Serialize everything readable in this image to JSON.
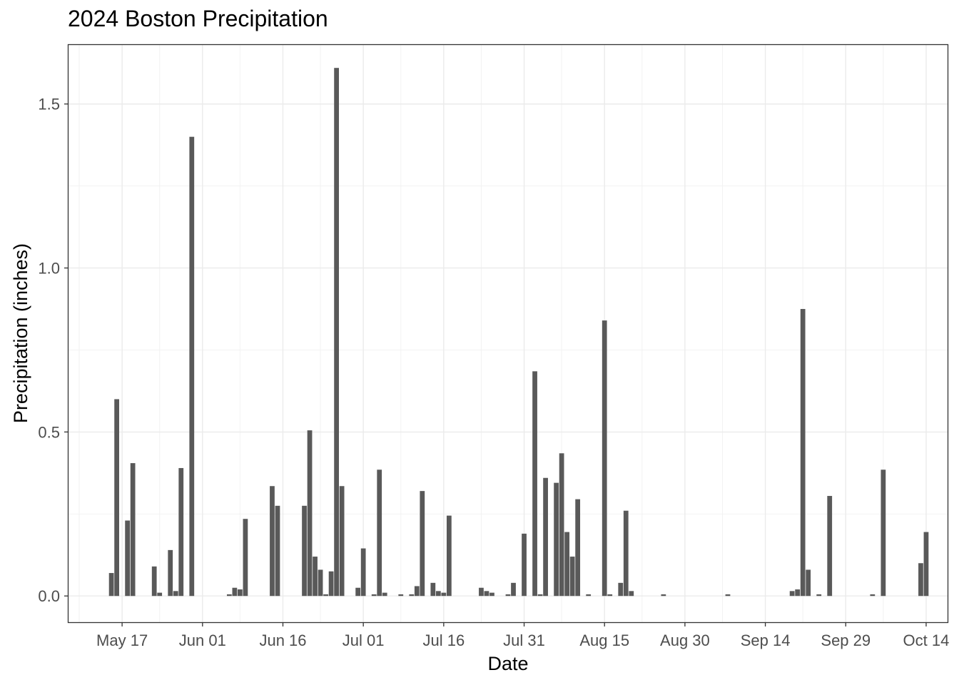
{
  "chart_data": {
    "type": "bar",
    "title": "2024 Boston Precipitation",
    "xlabel": "Date",
    "ylabel": "Precipitation (inches)",
    "year": 2024,
    "xlim": [
      "2024-05-07",
      "2024-10-18"
    ],
    "ylim": [
      -0.08,
      1.68
    ],
    "grid": true,
    "legend": "none",
    "bar_color": "#595959",
    "y_ticks": [
      {
        "value": 0.0,
        "label": "0.0"
      },
      {
        "value": 0.5,
        "label": "0.5"
      },
      {
        "value": 1.0,
        "label": "1.0"
      },
      {
        "value": 1.5,
        "label": "1.5"
      }
    ],
    "x_ticks": [
      {
        "date": "2024-05-17",
        "label": "May 17"
      },
      {
        "date": "2024-06-01",
        "label": "Jun 01"
      },
      {
        "date": "2024-06-16",
        "label": "Jun 16"
      },
      {
        "date": "2024-07-01",
        "label": "Jul 01"
      },
      {
        "date": "2024-07-16",
        "label": "Jul 16"
      },
      {
        "date": "2024-07-31",
        "label": "Jul 31"
      },
      {
        "date": "2024-08-15",
        "label": "Aug 15"
      },
      {
        "date": "2024-08-30",
        "label": "Aug 30"
      },
      {
        "date": "2024-09-14",
        "label": "Sep 14"
      },
      {
        "date": "2024-09-29",
        "label": "Sep 29"
      },
      {
        "date": "2024-10-14",
        "label": "Oct 14"
      }
    ],
    "x_minor_ticks": [
      "2024-05-09",
      "2024-05-24",
      "2024-06-08",
      "2024-06-23",
      "2024-07-08",
      "2024-07-23",
      "2024-08-07",
      "2024-08-22",
      "2024-09-06",
      "2024-09-21",
      "2024-10-06"
    ],
    "dates": [
      "2024-05-15",
      "2024-05-16",
      "2024-05-18",
      "2024-05-19",
      "2024-05-23",
      "2024-05-24",
      "2024-05-26",
      "2024-05-27",
      "2024-05-28",
      "2024-05-30",
      "2024-06-06",
      "2024-06-07",
      "2024-06-08",
      "2024-06-09",
      "2024-06-14",
      "2024-06-15",
      "2024-06-20",
      "2024-06-21",
      "2024-06-22",
      "2024-06-23",
      "2024-06-24",
      "2024-06-25",
      "2024-06-26",
      "2024-06-27",
      "2024-06-30",
      "2024-07-01",
      "2024-07-03",
      "2024-07-04",
      "2024-07-05",
      "2024-07-08",
      "2024-07-10",
      "2024-07-11",
      "2024-07-12",
      "2024-07-14",
      "2024-07-15",
      "2024-07-16",
      "2024-07-17",
      "2024-07-23",
      "2024-07-24",
      "2024-07-25",
      "2024-07-28",
      "2024-07-29",
      "2024-07-31",
      "2024-08-02",
      "2024-08-03",
      "2024-08-04",
      "2024-08-06",
      "2024-08-07",
      "2024-08-08",
      "2024-08-09",
      "2024-08-10",
      "2024-08-12",
      "2024-08-15",
      "2024-08-16",
      "2024-08-18",
      "2024-08-19",
      "2024-08-20",
      "2024-08-26",
      "2024-09-07",
      "2024-09-19",
      "2024-09-20",
      "2024-09-21",
      "2024-09-22",
      "2024-09-24",
      "2024-09-26",
      "2024-10-04",
      "2024-10-06",
      "2024-10-13",
      "2024-10-14"
    ],
    "values": [
      0.07,
      0.6,
      0.23,
      0.405,
      0.09,
      0.01,
      0.14,
      0.015,
      0.39,
      1.4,
      0.005,
      0.025,
      0.02,
      0.235,
      0.335,
      0.275,
      0.275,
      0.505,
      0.12,
      0.08,
      0.005,
      0.075,
      1.61,
      0.335,
      0.025,
      0.145,
      0.005,
      0.385,
      0.01,
      0.005,
      0.005,
      0.03,
      0.32,
      0.04,
      0.015,
      0.01,
      0.245,
      0.025,
      0.015,
      0.01,
      0.005,
      0.04,
      0.19,
      0.685,
      0.005,
      0.36,
      0.345,
      0.435,
      0.195,
      0.12,
      0.295,
      0.005,
      0.84,
      0.005,
      0.04,
      0.26,
      0.015,
      0.005,
      0.005,
      0.015,
      0.02,
      0.875,
      0.08,
      0.005,
      0.305,
      0.005,
      0.385,
      0.1,
      0.195
    ]
  }
}
